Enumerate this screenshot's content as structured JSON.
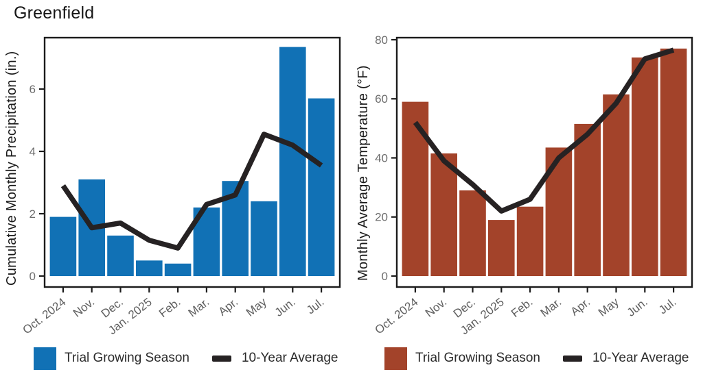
{
  "title": "Greenfield",
  "chart_data": [
    {
      "id": "precipitation",
      "type": "bar+line",
      "ylabel": "Cumulative Monthly Precipitation (in.)",
      "xlabel": "",
      "categories": [
        "Oct. 2024",
        "Nov.",
        "Dec.",
        "Jan. 2025",
        "Feb.",
        "Mar.",
        "Apr.",
        "May",
        "Jun.",
        "Jul."
      ],
      "series": [
        {
          "name": "Trial Growing Season",
          "type": "bar",
          "color": "#1171B5",
          "values": [
            1.9,
            3.1,
            1.3,
            0.5,
            0.4,
            2.2,
            3.05,
            2.4,
            7.35,
            5.7
          ]
        },
        {
          "name": "10-Year Average",
          "type": "line",
          "color": "#262223",
          "values": [
            2.9,
            1.55,
            1.7,
            1.15,
            0.9,
            2.3,
            2.6,
            4.55,
            4.2,
            3.55
          ]
        }
      ],
      "yticks": [
        0,
        2,
        4,
        6
      ],
      "ylim": [
        0,
        7.6
      ],
      "grid": false,
      "legend_position": "bottom"
    },
    {
      "id": "temperature",
      "type": "bar+line",
      "ylabel": "Monthly Average Temperature (°F)",
      "xlabel": "",
      "categories": [
        "Oct. 2024",
        "Nov.",
        "Dec.",
        "Jan. 2025",
        "Feb.",
        "Mar.",
        "Apr.",
        "May",
        "Jun.",
        "Jul."
      ],
      "series": [
        {
          "name": "Trial Growing Season",
          "type": "bar",
          "color": "#A3432A",
          "values": [
            59,
            41.5,
            29,
            19,
            23.5,
            43.5,
            51.5,
            61.5,
            74,
            77
          ]
        },
        {
          "name": "10-Year Average",
          "type": "line",
          "color": "#262223",
          "values": [
            52,
            39,
            31,
            22,
            26,
            40,
            48,
            58.5,
            73.5,
            76.5
          ]
        }
      ],
      "yticks": [
        0,
        20,
        40,
        60,
        80
      ],
      "ylim": [
        0,
        80
      ],
      "grid": false,
      "legend_position": "bottom"
    }
  ],
  "colors": {
    "precip_bar": "#1171B5",
    "temp_bar": "#A3432A",
    "average_line": "#262223",
    "axis_frame": "#1b1b1b",
    "tick_label": "#6d6d6d",
    "month_label": "#5f5f5f"
  }
}
